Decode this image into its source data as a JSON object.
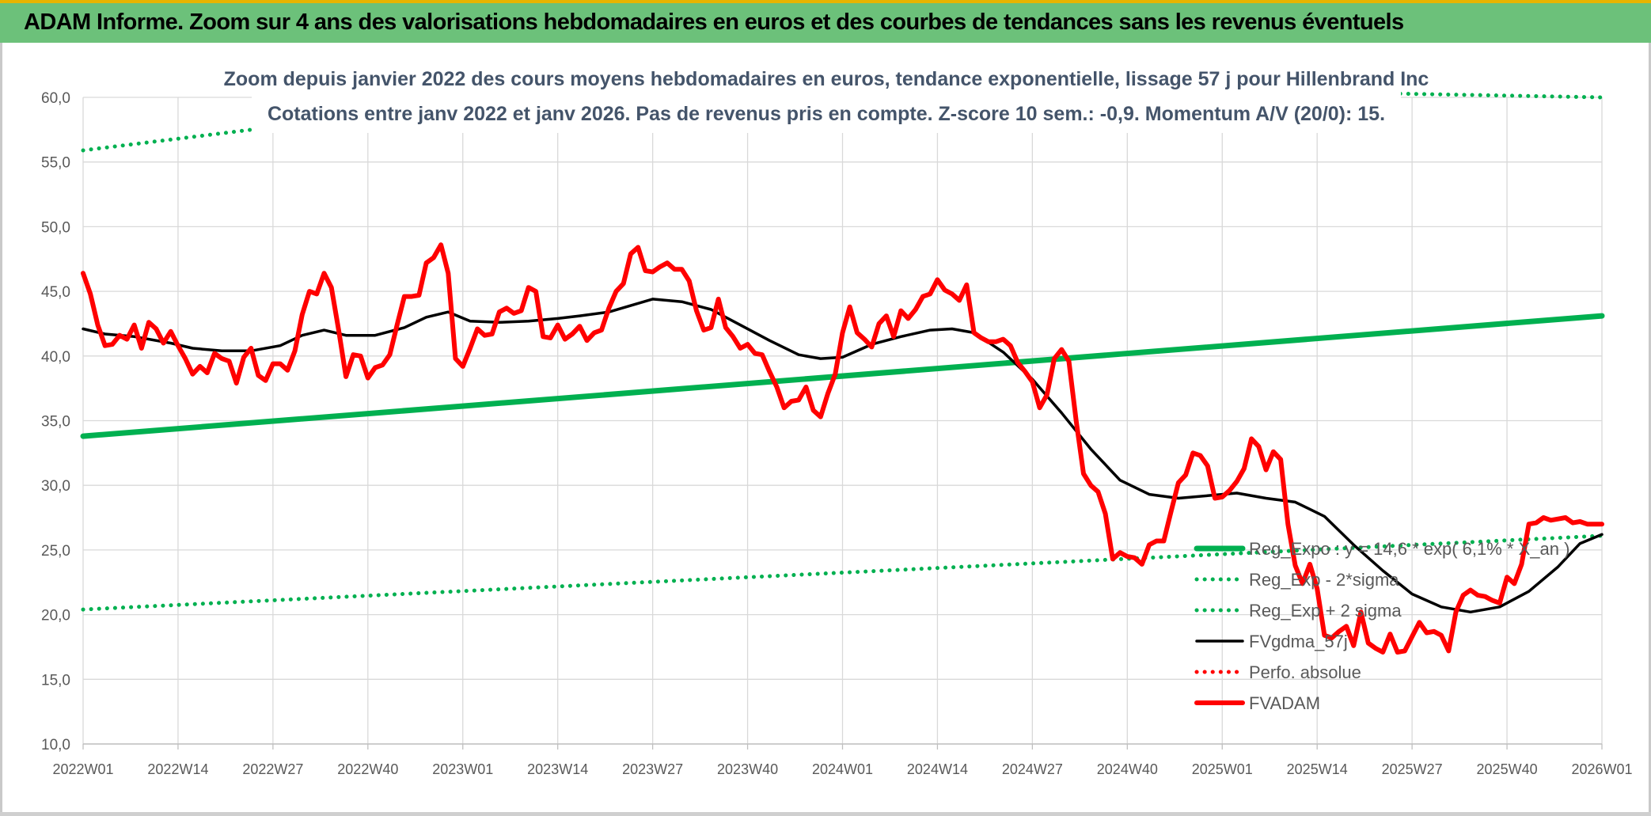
{
  "banner": {
    "title": "ADAM Informe. Zoom sur 4 ans des valorisations hebdomadaires en euros et des courbes de tendances sans les revenus éventuels"
  },
  "colors": {
    "banner_bg": "#6cc17a",
    "trend_green": "#00b050",
    "sma_black": "#000000",
    "adam_red": "#ff0000"
  },
  "chart_data": {
    "type": "line",
    "title": "Zoom depuis janvier 2022 des cours moyens hebdomadaires en euros, tendance exponentielle, lissage 57 j pour Hillenbrand Inc",
    "subtitle": "Cotations entre janv 2022 et janv 2026. Pas de revenus pris en compte. Z-score 10 sem.: -0,9. Momentum A/V (20/0): 15.",
    "xlabel": "",
    "ylabel": "",
    "ylim": [
      10,
      60
    ],
    "yticks": [
      "10,0",
      "15,0",
      "20,0",
      "25,0",
      "30,0",
      "35,0",
      "40,0",
      "45,0",
      "50,0",
      "55,0",
      "60,0"
    ],
    "xlim": [
      0,
      208
    ],
    "xticks": [
      {
        "x": 0,
        "label": "2022W01"
      },
      {
        "x": 13,
        "label": "2022W14"
      },
      {
        "x": 26,
        "label": "2022W27"
      },
      {
        "x": 39,
        "label": "2022W40"
      },
      {
        "x": 52,
        "label": "2023W01"
      },
      {
        "x": 65,
        "label": "2023W14"
      },
      {
        "x": 78,
        "label": "2023W27"
      },
      {
        "x": 91,
        "label": "2023W40"
      },
      {
        "x": 104,
        "label": "2024W01"
      },
      {
        "x": 117,
        "label": "2024W14"
      },
      {
        "x": 130,
        "label": "2024W27"
      },
      {
        "x": 143,
        "label": "2024W40"
      },
      {
        "x": 156,
        "label": "2025W01"
      },
      {
        "x": 169,
        "label": "2025W14"
      },
      {
        "x": 182,
        "label": "2025W27"
      },
      {
        "x": 195,
        "label": "2025W40"
      },
      {
        "x": 208,
        "label": "2026W01"
      }
    ],
    "grid": true,
    "legend_position": "bottom-right",
    "series": [
      {
        "name": "Reg_Expo : y = 14,6 * exp( 6,1% * X_an )",
        "style": "solid-thick",
        "color": "#00b050",
        "points": [
          [
            0,
            33.8
          ],
          [
            208,
            43.1
          ]
        ]
      },
      {
        "name": "Reg_Exp - 2*sigma",
        "style": "dotted",
        "color": "#00b050",
        "points": [
          [
            0,
            20.4
          ],
          [
            208,
            26.1
          ]
        ]
      },
      {
        "name": "Reg_Exp + 2 sigma",
        "style": "dotted",
        "color": "#00b050",
        "points": [
          [
            0,
            55.9
          ],
          [
            23,
            57.5
          ],
          [
            179,
            60.3
          ],
          [
            208,
            60.0
          ]
        ]
      },
      {
        "name": "FVgdma_57j",
        "style": "solid",
        "color": "#000000",
        "points": [
          [
            0,
            42.1
          ],
          [
            3,
            41.7
          ],
          [
            7,
            41.5
          ],
          [
            12,
            41.0
          ],
          [
            15,
            40.6
          ],
          [
            19,
            40.4
          ],
          [
            23,
            40.4
          ],
          [
            27,
            40.8
          ],
          [
            30,
            41.6
          ],
          [
            33,
            42.0
          ],
          [
            36,
            41.6
          ],
          [
            40,
            41.6
          ],
          [
            44,
            42.2
          ],
          [
            47,
            43.0
          ],
          [
            50,
            43.4
          ],
          [
            53,
            42.7
          ],
          [
            57,
            42.6
          ],
          [
            61,
            42.7
          ],
          [
            65,
            42.9
          ],
          [
            68,
            43.1
          ],
          [
            72,
            43.4
          ],
          [
            75,
            43.9
          ],
          [
            78,
            44.4
          ],
          [
            82,
            44.2
          ],
          [
            86,
            43.6
          ],
          [
            90,
            42.4
          ],
          [
            94,
            41.2
          ],
          [
            98,
            40.1
          ],
          [
            101,
            39.8
          ],
          [
            104,
            39.9
          ],
          [
            108,
            40.9
          ],
          [
            112,
            41.5
          ],
          [
            116,
            42.0
          ],
          [
            119,
            42.1
          ],
          [
            122,
            41.8
          ],
          [
            126,
            40.3
          ],
          [
            130,
            38.2
          ],
          [
            134,
            35.6
          ],
          [
            138,
            32.8
          ],
          [
            142,
            30.4
          ],
          [
            146,
            29.3
          ],
          [
            150,
            29.0
          ],
          [
            154,
            29.2
          ],
          [
            158,
            29.4
          ],
          [
            162,
            29.0
          ],
          [
            166,
            28.7
          ],
          [
            170,
            27.6
          ],
          [
            174,
            25.4
          ],
          [
            178,
            23.4
          ],
          [
            182,
            21.6
          ],
          [
            186,
            20.6
          ],
          [
            190,
            20.2
          ],
          [
            194,
            20.6
          ],
          [
            198,
            21.8
          ],
          [
            202,
            23.7
          ],
          [
            205,
            25.5
          ],
          [
            208,
            26.2
          ]
        ]
      },
      {
        "name": "Perfo. absolue",
        "style": "dotted",
        "color": "#ff0000",
        "points": []
      },
      {
        "name": "FVADAM",
        "style": "solid-thick",
        "color": "#ff0000",
        "points": [
          [
            0,
            46.4
          ],
          [
            1,
            44.8
          ],
          [
            2,
            42.4
          ],
          [
            3,
            40.8
          ],
          [
            4,
            40.9
          ],
          [
            5,
            41.6
          ],
          [
            6,
            41.3
          ],
          [
            7,
            42.4
          ],
          [
            8,
            40.6
          ],
          [
            9,
            42.6
          ],
          [
            10,
            42.1
          ],
          [
            11,
            41.0
          ],
          [
            12,
            41.9
          ],
          [
            13,
            40.8
          ],
          [
            14,
            39.8
          ],
          [
            15,
            38.6
          ],
          [
            16,
            39.2
          ],
          [
            17,
            38.7
          ],
          [
            18,
            40.2
          ],
          [
            19,
            39.8
          ],
          [
            20,
            39.6
          ],
          [
            21,
            37.9
          ],
          [
            22,
            39.9
          ],
          [
            23,
            40.6
          ],
          [
            24,
            38.5
          ],
          [
            25,
            38.1
          ],
          [
            26,
            39.4
          ],
          [
            27,
            39.4
          ],
          [
            28,
            38.9
          ],
          [
            29,
            40.4
          ],
          [
            30,
            43.2
          ],
          [
            31,
            45.0
          ],
          [
            32,
            44.8
          ],
          [
            33,
            46.4
          ],
          [
            34,
            45.3
          ],
          [
            35,
            42.0
          ],
          [
            36,
            38.4
          ],
          [
            37,
            40.1
          ],
          [
            38,
            40.0
          ],
          [
            39,
            38.3
          ],
          [
            40,
            39.1
          ],
          [
            41,
            39.3
          ],
          [
            42,
            40.1
          ],
          [
            43,
            42.4
          ],
          [
            44,
            44.6
          ],
          [
            45,
            44.6
          ],
          [
            46,
            44.7
          ],
          [
            47,
            47.2
          ],
          [
            48,
            47.6
          ],
          [
            49,
            48.6
          ],
          [
            50,
            46.4
          ],
          [
            51,
            39.8
          ],
          [
            52,
            39.2
          ],
          [
            53,
            40.6
          ],
          [
            54,
            42.1
          ],
          [
            55,
            41.6
          ],
          [
            56,
            41.7
          ],
          [
            57,
            43.4
          ],
          [
            58,
            43.7
          ],
          [
            59,
            43.3
          ],
          [
            60,
            43.5
          ],
          [
            61,
            45.3
          ],
          [
            62,
            45.0
          ],
          [
            63,
            41.5
          ],
          [
            64,
            41.4
          ],
          [
            65,
            42.4
          ],
          [
            66,
            41.3
          ],
          [
            67,
            41.7
          ],
          [
            68,
            42.3
          ],
          [
            69,
            41.2
          ],
          [
            70,
            41.8
          ],
          [
            71,
            42.0
          ],
          [
            72,
            43.7
          ],
          [
            73,
            45.0
          ],
          [
            74,
            45.6
          ],
          [
            75,
            47.9
          ],
          [
            76,
            48.4
          ],
          [
            77,
            46.6
          ],
          [
            78,
            46.5
          ],
          [
            79,
            46.9
          ],
          [
            80,
            47.2
          ],
          [
            81,
            46.7
          ],
          [
            82,
            46.7
          ],
          [
            83,
            45.8
          ],
          [
            84,
            43.5
          ],
          [
            85,
            42.0
          ],
          [
            86,
            42.2
          ],
          [
            87,
            44.4
          ],
          [
            88,
            42.2
          ],
          [
            89,
            41.5
          ],
          [
            90,
            40.6
          ],
          [
            91,
            40.9
          ],
          [
            92,
            40.2
          ],
          [
            93,
            40.1
          ],
          [
            94,
            38.8
          ],
          [
            95,
            37.6
          ],
          [
            96,
            36.0
          ],
          [
            97,
            36.5
          ],
          [
            98,
            36.6
          ],
          [
            99,
            37.6
          ],
          [
            100,
            35.8
          ],
          [
            101,
            35.3
          ],
          [
            102,
            37.1
          ],
          [
            103,
            38.6
          ],
          [
            104,
            41.8
          ],
          [
            105,
            43.8
          ],
          [
            106,
            41.8
          ],
          [
            107,
            41.3
          ],
          [
            108,
            40.7
          ],
          [
            109,
            42.5
          ],
          [
            110,
            43.1
          ],
          [
            111,
            41.5
          ],
          [
            112,
            43.5
          ],
          [
            113,
            42.9
          ],
          [
            114,
            43.6
          ],
          [
            115,
            44.6
          ],
          [
            116,
            44.8
          ],
          [
            117,
            45.9
          ],
          [
            118,
            45.1
          ],
          [
            119,
            44.8
          ],
          [
            120,
            44.3
          ],
          [
            121,
            45.5
          ],
          [
            122,
            41.8
          ],
          [
            123,
            41.4
          ],
          [
            124,
            41.1
          ],
          [
            125,
            41.1
          ],
          [
            126,
            41.3
          ],
          [
            127,
            40.8
          ],
          [
            128,
            39.5
          ],
          [
            129,
            38.8
          ],
          [
            130,
            38.0
          ],
          [
            131,
            36.0
          ],
          [
            132,
            37.0
          ],
          [
            133,
            39.8
          ],
          [
            134,
            40.5
          ],
          [
            135,
            39.6
          ],
          [
            136,
            35.0
          ],
          [
            137,
            30.9
          ],
          [
            138,
            30.0
          ],
          [
            139,
            29.5
          ],
          [
            140,
            27.8
          ],
          [
            141,
            24.3
          ],
          [
            142,
            24.8
          ],
          [
            143,
            24.5
          ],
          [
            144,
            24.4
          ],
          [
            145,
            23.9
          ],
          [
            146,
            25.4
          ],
          [
            147,
            25.7
          ],
          [
            148,
            25.7
          ],
          [
            149,
            28.0
          ],
          [
            150,
            30.2
          ],
          [
            151,
            30.8
          ],
          [
            152,
            32.5
          ],
          [
            153,
            32.3
          ],
          [
            154,
            31.5
          ],
          [
            155,
            29.0
          ],
          [
            156,
            29.1
          ],
          [
            157,
            29.6
          ],
          [
            158,
            30.3
          ],
          [
            159,
            31.3
          ],
          [
            160,
            33.6
          ],
          [
            161,
            33.0
          ],
          [
            162,
            31.2
          ],
          [
            163,
            32.6
          ],
          [
            164,
            32.0
          ],
          [
            165,
            27.0
          ],
          [
            166,
            23.8
          ],
          [
            167,
            22.4
          ],
          [
            168,
            23.9
          ],
          [
            169,
            22.0
          ],
          [
            170,
            18.4
          ],
          [
            171,
            18.2
          ],
          [
            172,
            18.7
          ],
          [
            173,
            19.1
          ],
          [
            174,
            17.6
          ],
          [
            175,
            20.2
          ],
          [
            176,
            17.8
          ],
          [
            177,
            17.4
          ],
          [
            178,
            17.1
          ],
          [
            179,
            18.5
          ],
          [
            180,
            17.1
          ],
          [
            181,
            17.2
          ],
          [
            182,
            18.3
          ],
          [
            183,
            19.4
          ],
          [
            184,
            18.6
          ],
          [
            185,
            18.7
          ],
          [
            186,
            18.4
          ],
          [
            187,
            17.2
          ],
          [
            188,
            20.2
          ],
          [
            189,
            21.5
          ],
          [
            190,
            21.9
          ],
          [
            191,
            21.5
          ],
          [
            192,
            21.4
          ],
          [
            193,
            21.1
          ],
          [
            194,
            20.9
          ],
          [
            195,
            22.9
          ],
          [
            196,
            22.4
          ],
          [
            197,
            23.9
          ],
          [
            198,
            27.0
          ],
          [
            199,
            27.1
          ],
          [
            200,
            27.5
          ],
          [
            201,
            27.3
          ],
          [
            202,
            27.4
          ],
          [
            203,
            27.5
          ],
          [
            204,
            27.1
          ],
          [
            205,
            27.2
          ],
          [
            206,
            27.0
          ],
          [
            207,
            27.0
          ],
          [
            208,
            27.0
          ]
        ]
      }
    ]
  }
}
